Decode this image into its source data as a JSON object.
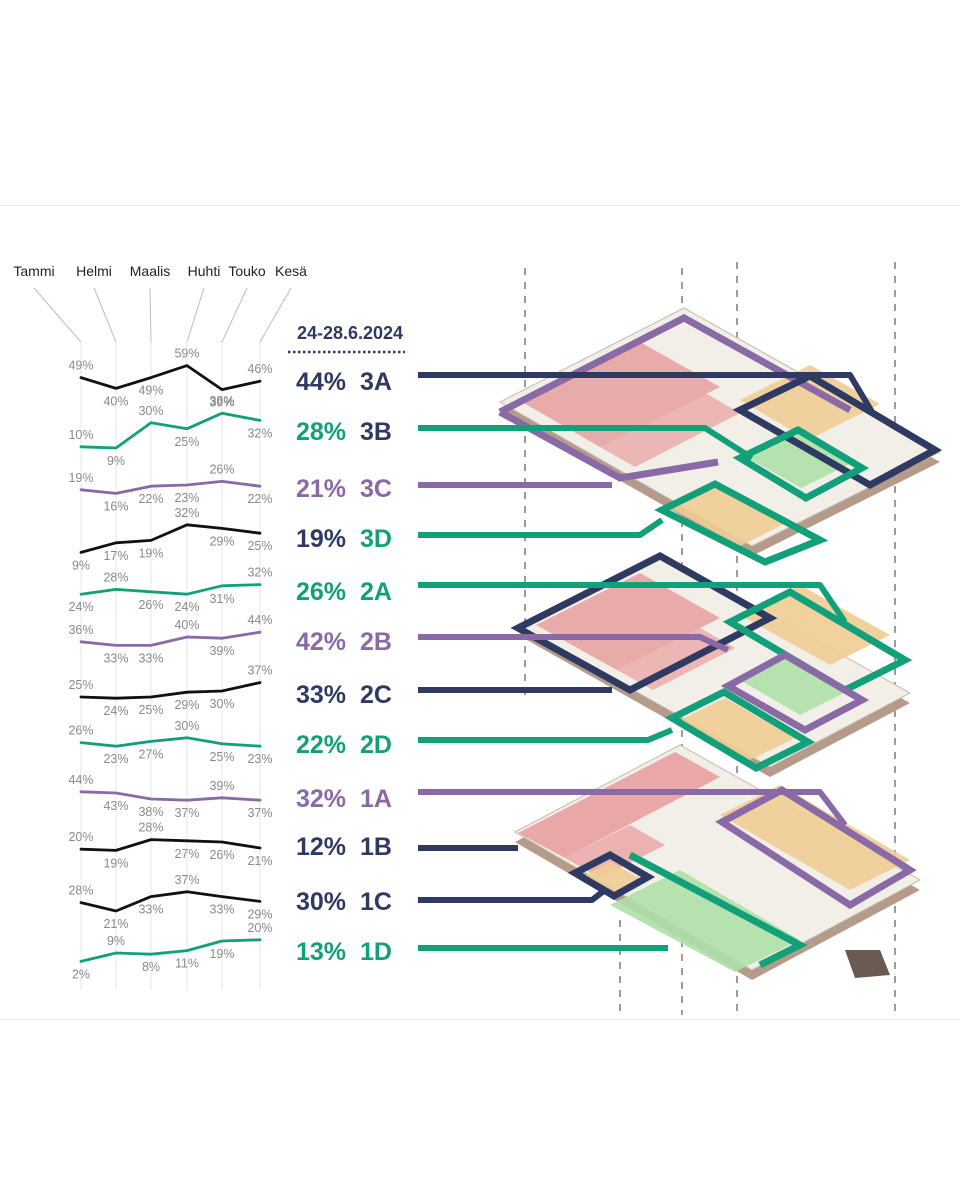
{
  "colors": {
    "navy": "#2f3a63",
    "green": "#12a07a",
    "purple": "#8a6aa6",
    "black": "#111111",
    "room_red": "#e8a3a3",
    "room_orange": "#f0cd95",
    "room_green": "#aee0a8"
  },
  "date_range": "24-28.6.2024",
  "chart_data": {
    "type": "line",
    "x": [
      "Tammi",
      "Helmi",
      "Maalis",
      "Huhti",
      "Touko",
      "Kesä"
    ],
    "series": [
      {
        "name": "3A",
        "values": [
          49,
          40,
          49,
          59,
          39,
          46
        ],
        "value_labels": [
          "49%",
          "40%",
          "49%",
          "59%",
          "39%",
          "46%"
        ],
        "color": "#111111",
        "kesa": "44%",
        "pct_color": "#2f3a63",
        "id_color": "#2f3a63",
        "connector": "#2f3a63"
      },
      {
        "name": "3B",
        "values": [
          10,
          9,
          30,
          25,
          38,
          32
        ],
        "value_labels": [
          "10%",
          "9%",
          "30%",
          "25%",
          "38%",
          "32%"
        ],
        "color": "#12a07a",
        "kesa": "28%",
        "pct_color": "#12a07a",
        "id_color": "#2f3a63",
        "connector": "#12a07a"
      },
      {
        "name": "3C",
        "values": [
          19,
          16,
          22,
          23,
          26,
          22
        ],
        "value_labels": [
          "19%",
          "16%",
          "22%",
          "23%",
          "26%",
          "22%"
        ],
        "color": "#8a6aa6",
        "kesa": "21%",
        "pct_color": "#8a6aa6",
        "id_color": "#8a6aa6",
        "connector": "#8a6aa6"
      },
      {
        "name": "3D",
        "values": [
          9,
          17,
          19,
          32,
          29,
          25
        ],
        "value_labels": [
          "9%",
          "17%",
          "19%",
          "32%",
          "29%",
          "25%"
        ],
        "color": "#111111",
        "kesa": "19%",
        "pct_color": "#2f3a63",
        "id_color": "#12a07a",
        "connector": "#12a07a"
      },
      {
        "name": "2A",
        "values": [
          24,
          28,
          26,
          24,
          31,
          32
        ],
        "value_labels": [
          "24%",
          "28%",
          "26%",
          "24%",
          "31%",
          "32%"
        ],
        "color": "#12a07a",
        "kesa": "26%",
        "pct_color": "#12a07a",
        "id_color": "#12a07a",
        "connector": "#12a07a"
      },
      {
        "name": "2B",
        "values": [
          36,
          33,
          33,
          40,
          39,
          44
        ],
        "value_labels": [
          "36%",
          "33%",
          "33%",
          "40%",
          "39%",
          "44%"
        ],
        "color": "#8a6aa6",
        "kesa": "42%",
        "pct_color": "#8a6aa6",
        "id_color": "#8a6aa6",
        "connector": "#8a6aa6"
      },
      {
        "name": "2C",
        "values": [
          25,
          24,
          25,
          29,
          30,
          37
        ],
        "value_labels": [
          "25%",
          "24%",
          "25%",
          "29%",
          "30%",
          "37%"
        ],
        "color": "#111111",
        "kesa": "33%",
        "pct_color": "#2f3a63",
        "id_color": "#2f3a63",
        "connector": "#2f3a63"
      },
      {
        "name": "2D",
        "values": [
          26,
          23,
          27,
          30,
          25,
          23
        ],
        "value_labels": [
          "26%",
          "23%",
          "27%",
          "30%",
          "25%",
          "23%"
        ],
        "color": "#12a07a",
        "kesa": "22%",
        "pct_color": "#12a07a",
        "id_color": "#12a07a",
        "connector": "#12a07a"
      },
      {
        "name": "1A",
        "values": [
          44,
          43,
          38,
          37,
          39,
          37
        ],
        "value_labels": [
          "44%",
          "43%",
          "38%",
          "37%",
          "39%",
          "37%"
        ],
        "color": "#8a6aa6",
        "kesa": "32%",
        "pct_color": "#8a6aa6",
        "id_color": "#8a6aa6",
        "connector": "#8a6aa6"
      },
      {
        "name": "1B",
        "values": [
          20,
          19,
          28,
          27,
          26,
          21
        ],
        "value_labels": [
          "20%",
          "19%",
          "28%",
          "27%",
          "26%",
          "21%"
        ],
        "color": "#111111",
        "kesa": "12%",
        "pct_color": "#2f3a63",
        "id_color": "#2f3a63",
        "connector": "#2f3a63"
      },
      {
        "name": "1C",
        "values": [
          28,
          21,
          33,
          37,
          33,
          29
        ],
        "value_labels": [
          "28%",
          "21%",
          "33%",
          "37%",
          "33%",
          "29%"
        ],
        "color": "#111111",
        "kesa": "30%",
        "pct_color": "#2f3a63",
        "id_color": "#2f3a63",
        "connector": "#2f3a63"
      },
      {
        "name": "1D",
        "values": [
          2,
          9,
          8,
          11,
          19,
          20
        ],
        "value_labels": [
          "2%",
          "9%",
          "8%",
          "11%",
          "19%",
          "20%"
        ],
        "color": "#12a07a",
        "kesa": "13%",
        "pct_color": "#12a07a",
        "id_color": "#12a07a",
        "connector": "#12a07a"
      }
    ]
  }
}
